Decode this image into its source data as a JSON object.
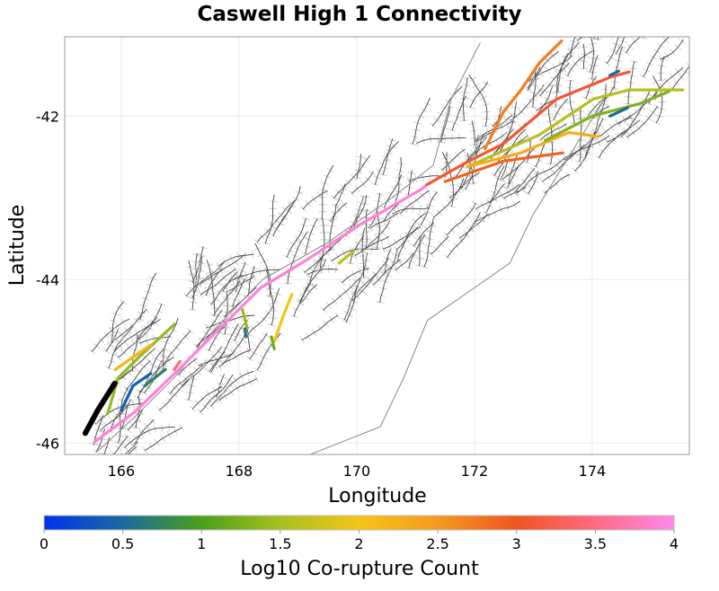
{
  "chart_data": {
    "type": "map",
    "title": "Caswell High 1 Connectivity",
    "xlabel": "Longitude",
    "ylabel": "Latitude",
    "xlim": [
      165.04,
      175.65
    ],
    "ylim": [
      -46.14,
      -41.03
    ],
    "xticks": [
      166,
      168,
      170,
      172,
      174
    ],
    "yticks": [
      -42,
      -44,
      -46
    ],
    "grid": true,
    "colorbar": {
      "label": "Log10 Co-rupture Count",
      "range": [
        0,
        4
      ],
      "ticks": [
        "0",
        "0.5",
        "1",
        "1.5",
        "2",
        "2.5",
        "3",
        "3.5",
        "4"
      ],
      "stops": [
        {
          "v": 0,
          "color": "#0033ee"
        },
        {
          "v": 0.5,
          "color": "#1a6aa0"
        },
        {
          "v": 1,
          "color": "#4aa01a"
        },
        {
          "v": 1.5,
          "color": "#a8c020"
        },
        {
          "v": 2,
          "color": "#f5c518"
        },
        {
          "v": 2.5,
          "color": "#f59a20"
        },
        {
          "v": 3,
          "color": "#ee5522"
        },
        {
          "v": 3.5,
          "color": "#ff6b80"
        },
        {
          "v": 4,
          "color": "#ff88ee"
        }
      ],
      "placement": "bottom"
    },
    "source_fault": {
      "name": "Caswell High 1",
      "color": "#000000",
      "coords": [
        [
          165.39,
          -45.88
        ],
        [
          165.6,
          -45.6
        ],
        [
          165.89,
          -45.27
        ]
      ]
    },
    "faults": [
      {
        "value": 3.9,
        "coords": [
          [
            165.54,
            -45.99
          ],
          [
            166.23,
            -45.62
          ],
          [
            166.99,
            -45.09
          ],
          [
            167.6,
            -44.65
          ],
          [
            168.37,
            -44.1
          ],
          [
            169.13,
            -43.77
          ],
          [
            170.05,
            -43.33
          ],
          [
            171.11,
            -42.89
          ],
          [
            171.19,
            -42.84
          ]
        ]
      },
      {
        "value": 3.1,
        "coords": [
          [
            171.19,
            -42.84
          ],
          [
            171.88,
            -42.56
          ],
          [
            172.49,
            -42.34
          ],
          [
            173.4,
            -41.79
          ],
          [
            174.32,
            -41.52
          ],
          [
            174.63,
            -41.46
          ]
        ]
      },
      {
        "value": 2.7,
        "coords": [
          [
            172.18,
            -42.4
          ],
          [
            172.49,
            -41.95
          ],
          [
            172.79,
            -41.68
          ],
          [
            173.1,
            -41.35
          ],
          [
            173.48,
            -41.08
          ]
        ]
      },
      {
        "value": 1.6,
        "coords": [
          [
            171.88,
            -42.62
          ],
          [
            173.1,
            -42.23
          ],
          [
            174.02,
            -41.79
          ],
          [
            174.63,
            -41.68
          ],
          [
            175.54,
            -41.68
          ]
        ]
      },
      {
        "value": 2.3,
        "coords": [
          [
            171.88,
            -42.62
          ],
          [
            172.79,
            -42.45
          ],
          [
            173.6,
            -42.2
          ],
          [
            174.1,
            -42.25
          ]
        ]
      },
      {
        "value": 2.9,
        "coords": [
          [
            171.5,
            -42.8
          ],
          [
            172.5,
            -42.55
          ],
          [
            173.5,
            -42.45
          ]
        ]
      },
      {
        "value": 1.3,
        "coords": [
          [
            173.2,
            -42.3
          ],
          [
            174.0,
            -42.0
          ],
          [
            174.8,
            -41.85
          ],
          [
            175.3,
            -41.7
          ]
        ]
      },
      {
        "value": 0.5,
        "coords": [
          [
            174.3,
            -42.0
          ],
          [
            174.6,
            -41.9
          ]
        ]
      },
      {
        "value": 0.5,
        "coords": [
          [
            174.3,
            -41.5
          ],
          [
            174.45,
            -41.45
          ]
        ]
      },
      {
        "value": 2.0,
        "coords": [
          [
            168.6,
            -44.76
          ],
          [
            168.75,
            -44.45
          ],
          [
            168.9,
            -44.18
          ]
        ]
      },
      {
        "value": 1.2,
        "coords": [
          [
            168.55,
            -44.7
          ],
          [
            168.6,
            -44.85
          ]
        ]
      },
      {
        "value": 1.4,
        "coords": [
          [
            168.06,
            -44.37
          ],
          [
            168.14,
            -44.6
          ]
        ]
      },
      {
        "value": 0.6,
        "coords": [
          [
            168.1,
            -44.6
          ],
          [
            168.12,
            -44.7
          ]
        ]
      },
      {
        "value": 1.6,
        "coords": [
          [
            169.7,
            -43.8
          ],
          [
            169.95,
            -43.65
          ]
        ]
      },
      {
        "value": 1.4,
        "coords": [
          [
            165.77,
            -45.64
          ],
          [
            165.95,
            -45.2
          ],
          [
            166.3,
            -44.95
          ],
          [
            166.6,
            -44.75
          ],
          [
            166.9,
            -44.55
          ]
        ]
      },
      {
        "value": 2.2,
        "coords": [
          [
            165.9,
            -45.1
          ],
          [
            166.2,
            -44.95
          ],
          [
            166.5,
            -44.8
          ]
        ]
      },
      {
        "value": 0.4,
        "coords": [
          [
            166.0,
            -45.6
          ],
          [
            166.2,
            -45.3
          ],
          [
            166.5,
            -45.15
          ]
        ]
      },
      {
        "value": 0.7,
        "coords": [
          [
            166.4,
            -45.3
          ],
          [
            166.75,
            -45.1
          ]
        ]
      },
      {
        "value": 3.5,
        "coords": [
          [
            166.9,
            -45.1
          ],
          [
            167.0,
            -45.0
          ]
        ]
      }
    ]
  }
}
